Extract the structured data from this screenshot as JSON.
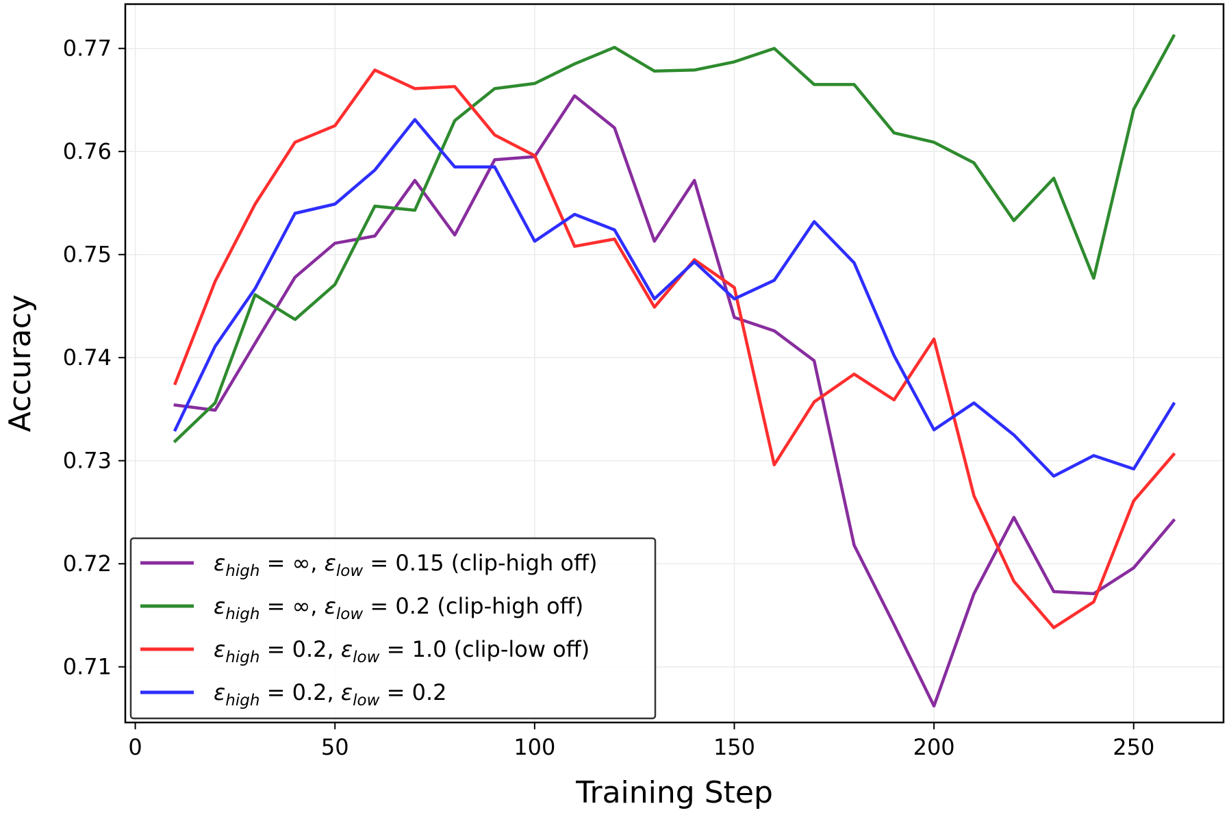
{
  "chart_data": {
    "type": "line",
    "title": "",
    "xlabel": "Training Step",
    "ylabel": "Accuracy",
    "xlim": [
      -2.5,
      272.5
    ],
    "ylim": [
      0.7046,
      0.7743
    ],
    "xticks": [
      0,
      50,
      100,
      150,
      200,
      250
    ],
    "xtick_labels": [
      "0",
      "50",
      "100",
      "150",
      "200",
      "250"
    ],
    "yticks": [
      0.71,
      0.72,
      0.73,
      0.74,
      0.75,
      0.76,
      0.77
    ],
    "ytick_labels": [
      "0.71",
      "0.72",
      "0.73",
      "0.74",
      "0.75",
      "0.76",
      "0.77"
    ],
    "grid": true,
    "legend_position": "lower-left",
    "x": [
      10,
      20,
      30,
      40,
      50,
      60,
      70,
      80,
      90,
      100,
      110,
      120,
      130,
      140,
      150,
      160,
      170,
      180,
      190,
      200,
      210,
      220,
      230,
      240,
      250,
      260
    ],
    "series": [
      {
        "name": "ε_high = ∞, ε_low = 0.15 (clip-high off)",
        "legend_parts": {
          "a": "high",
          "a_val": "∞",
          "b": "low",
          "b_val": "0.15",
          "note": "(clip-high off)"
        },
        "color": "#882d9e",
        "values": [
          0.7354,
          0.7349,
          0.7414,
          0.7478,
          0.7511,
          0.7518,
          0.7572,
          0.7519,
          0.7592,
          0.7595,
          0.7654,
          0.7623,
          0.7513,
          0.7572,
          0.7439,
          0.7426,
          0.7397,
          0.7218,
          0.7141,
          0.7062,
          0.7171,
          0.7245,
          0.7173,
          0.7171,
          0.7196,
          0.7242
        ]
      },
      {
        "name": "ε_high = ∞, ε_low = 0.2 (clip-high off)",
        "legend_parts": {
          "a": "high",
          "a_val": "∞",
          "b": "low",
          "b_val": "0.2",
          "note": "(clip-high off)"
        },
        "color": "#2e8b2e",
        "values": [
          0.7319,
          0.7356,
          0.7461,
          0.7437,
          0.7471,
          0.7547,
          0.7543,
          0.763,
          0.7661,
          0.7666,
          0.7685,
          0.7701,
          0.7678,
          0.7679,
          0.7687,
          0.77,
          0.7665,
          0.7665,
          0.7618,
          0.7609,
          0.7589,
          0.7533,
          0.7574,
          0.7477,
          0.7641,
          0.7712
        ]
      },
      {
        "name": "ε_high = 0.2, ε_low = 1.0 (clip-low off)",
        "legend_parts": {
          "a": "high",
          "a_val": "0.2",
          "b": "low",
          "b_val": "1.0",
          "note": "(clip-low off)"
        },
        "color": "#ff2e2e",
        "values": [
          0.7375,
          0.7474,
          0.7549,
          0.7609,
          0.7625,
          0.7679,
          0.7661,
          0.7663,
          0.7616,
          0.7596,
          0.7508,
          0.7515,
          0.7449,
          0.7495,
          0.7468,
          0.7296,
          0.7357,
          0.7384,
          0.7359,
          0.7418,
          0.7266,
          0.7183,
          0.7138,
          0.7163,
          0.7261,
          0.7306
        ]
      },
      {
        "name": "ε_high = 0.2, ε_low = 0.2",
        "legend_parts": {
          "a": "high",
          "a_val": "0.2",
          "b": "low",
          "b_val": "0.2",
          "note": ""
        },
        "color": "#2e2eff",
        "values": [
          0.733,
          0.7411,
          0.7467,
          0.754,
          0.7549,
          0.7582,
          0.7631,
          0.7585,
          0.7585,
          0.7513,
          0.7539,
          0.7524,
          0.7457,
          0.7493,
          0.7457,
          0.7475,
          0.7532,
          0.7492,
          0.7402,
          0.733,
          0.7356,
          0.7325,
          0.7285,
          0.7305,
          0.7292,
          0.7355
        ]
      }
    ]
  }
}
